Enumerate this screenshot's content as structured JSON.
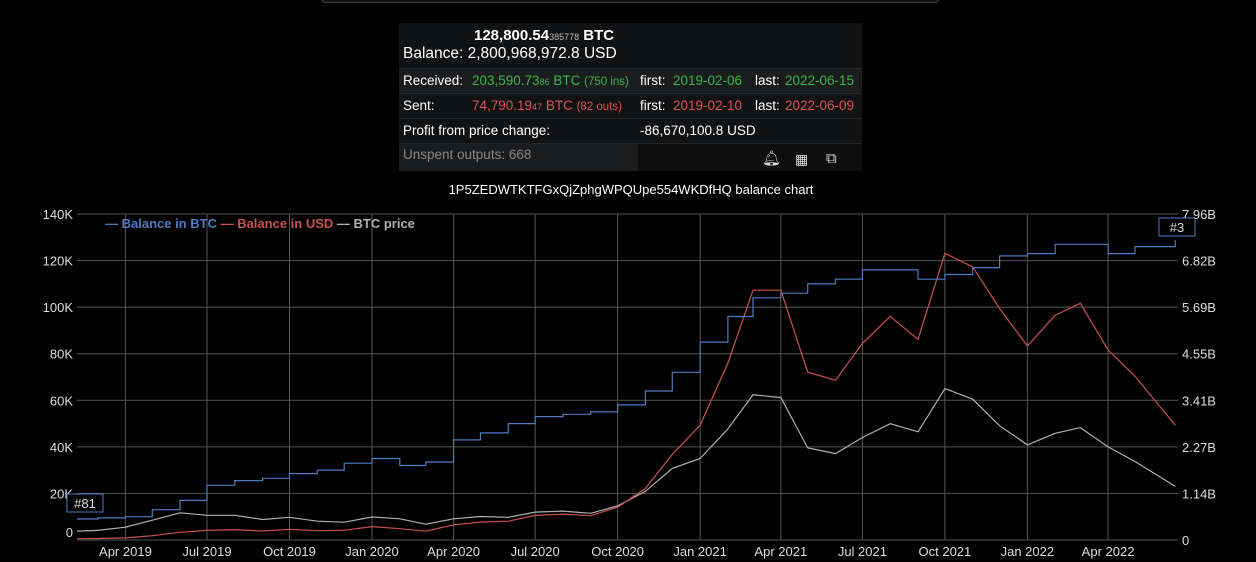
{
  "summary": {
    "balance_btc_main": "128,800.54",
    "balance_btc_small": "385778",
    "balance_btc_unit": "BTC",
    "balance_usd": "Balance: 2,800,968,972.8 USD",
    "received_label": "Received:",
    "received_main": "203,590.73",
    "received_small": "86",
    "received_unit": " BTC ",
    "received_count": "(750 ins)",
    "received_first_label": "first:",
    "received_first": "2019-02-06",
    "received_last_label": "last:",
    "received_last": "2022-06-15",
    "sent_label": "Sent:",
    "sent_main": "74,790.19",
    "sent_small": "47",
    "sent_unit": " BTC ",
    "sent_count": "(82 outs)",
    "sent_first_label": "first:",
    "sent_first": "2019-02-10",
    "sent_last_label": "last:",
    "sent_last": "2022-06-09",
    "profit_label": "Profit from price change:",
    "profit_value": "-86,670,100.8 USD",
    "unspent": "Unspent outputs: 668",
    "icons": [
      "bell-icon",
      "qr-code-icon",
      "copy-icon"
    ]
  },
  "chart_data": {
    "type": "line",
    "title": "1P5ZEDWTKTFGxQjZphgWPQUpe554WKDfHQ balance chart",
    "legend_position": "top-left",
    "grid": true,
    "xlim": [
      "2019-02-06",
      "2022-06-18"
    ],
    "x_ticks": [
      "Apr 2019",
      "Jul 2019",
      "Oct 2019",
      "Jan 2020",
      "Apr 2020",
      "Jul 2020",
      "Oct 2020",
      "Jan 2021",
      "Apr 2021",
      "Jul 2021",
      "Oct 2021",
      "Jan 2022",
      "Apr 2022"
    ],
    "x_tick_dates": [
      "2019-04-01",
      "2019-07-01",
      "2019-10-01",
      "2020-01-01",
      "2020-04-01",
      "2020-07-01",
      "2020-10-01",
      "2021-01-01",
      "2021-04-01",
      "2021-07-01",
      "2021-10-01",
      "2022-01-01",
      "2022-04-01"
    ],
    "y_left": {
      "ylim": [
        0,
        140000
      ],
      "ticks": [
        "0",
        "20K",
        "40K",
        "60K",
        "80K",
        "100K",
        "120K",
        "140K"
      ]
    },
    "y_right": {
      "ylim": [
        0,
        7.96
      ],
      "ticks": [
        "0",
        "1.14B",
        "2.27B",
        "3.41B",
        "4.55B",
        "5.69B",
        "6.82B",
        "7.96B"
      ]
    },
    "annotations": [
      {
        "text": "#81",
        "date": "2019-02-06"
      },
      {
        "text": "#3",
        "date": "2022-06-15"
      }
    ],
    "colors": {
      "btc": "#4f7bbf",
      "usd": "#c9524c",
      "price": "#b0b0b0"
    },
    "dates": [
      "2019-02-06",
      "2019-03-01",
      "2019-04-01",
      "2019-05-01",
      "2019-06-01",
      "2019-07-01",
      "2019-08-01",
      "2019-09-01",
      "2019-10-01",
      "2019-11-01",
      "2019-12-01",
      "2020-01-01",
      "2020-02-01",
      "2020-03-01",
      "2020-04-01",
      "2020-05-01",
      "2020-06-01",
      "2020-07-01",
      "2020-08-01",
      "2020-09-01",
      "2020-10-01",
      "2020-11-01",
      "2020-12-01",
      "2021-01-01",
      "2021-02-01",
      "2021-03-01",
      "2021-04-01",
      "2021-05-01",
      "2021-06-01",
      "2021-07-01",
      "2021-08-01",
      "2021-09-01",
      "2021-10-01",
      "2021-11-01",
      "2021-12-01",
      "2022-01-01",
      "2022-02-01",
      "2022-03-01",
      "2022-04-01",
      "2022-05-01",
      "2022-06-15"
    ],
    "series": [
      {
        "name": "Balance in BTC",
        "axis": "left",
        "values": [
          9000,
          9500,
          10000,
          13000,
          17000,
          23500,
          25500,
          26500,
          28500,
          30000,
          33000,
          35000,
          32000,
          33500,
          43000,
          46000,
          50000,
          53000,
          54000,
          55000,
          58000,
          64000,
          72000,
          85000,
          96000,
          104000,
          106000,
          110000,
          112000,
          116000,
          116000,
          112000,
          114000,
          117000,
          122000,
          123000,
          127000,
          127000,
          123000,
          126000,
          128800
        ]
      },
      {
        "name": "Balance in USD",
        "axis": "right",
        "values": [
          0.032,
          0.037,
          0.052,
          0.104,
          0.187,
          0.235,
          0.255,
          0.22,
          0.262,
          0.228,
          0.238,
          0.326,
          0.275,
          0.214,
          0.37,
          0.437,
          0.46,
          0.6,
          0.632,
          0.594,
          0.8,
          1.26,
          2.09,
          2.8,
          4.32,
          6.1,
          6.1,
          4.1,
          3.9,
          4.8,
          5.46,
          4.9,
          7.0,
          6.67,
          5.65,
          4.74,
          5.49,
          5.78,
          4.64,
          4.0,
          2.8
        ]
      },
      {
        "name": "BTC price",
        "axis": "hidden",
        "values": [
          3600,
          3900,
          5200,
          8000,
          11000,
          10000,
          10000,
          8300,
          9200,
          7600,
          7200,
          9300,
          8600,
          6400,
          8600,
          9500,
          9200,
          11300,
          11700,
          10800,
          13800,
          19700,
          29000,
          33000,
          45000,
          58800,
          57700,
          37300,
          35000,
          41500,
          47100,
          43800,
          61300,
          57000,
          46300,
          38500,
          43200,
          45500,
          37700,
          31800,
          21700
        ]
      }
    ]
  }
}
